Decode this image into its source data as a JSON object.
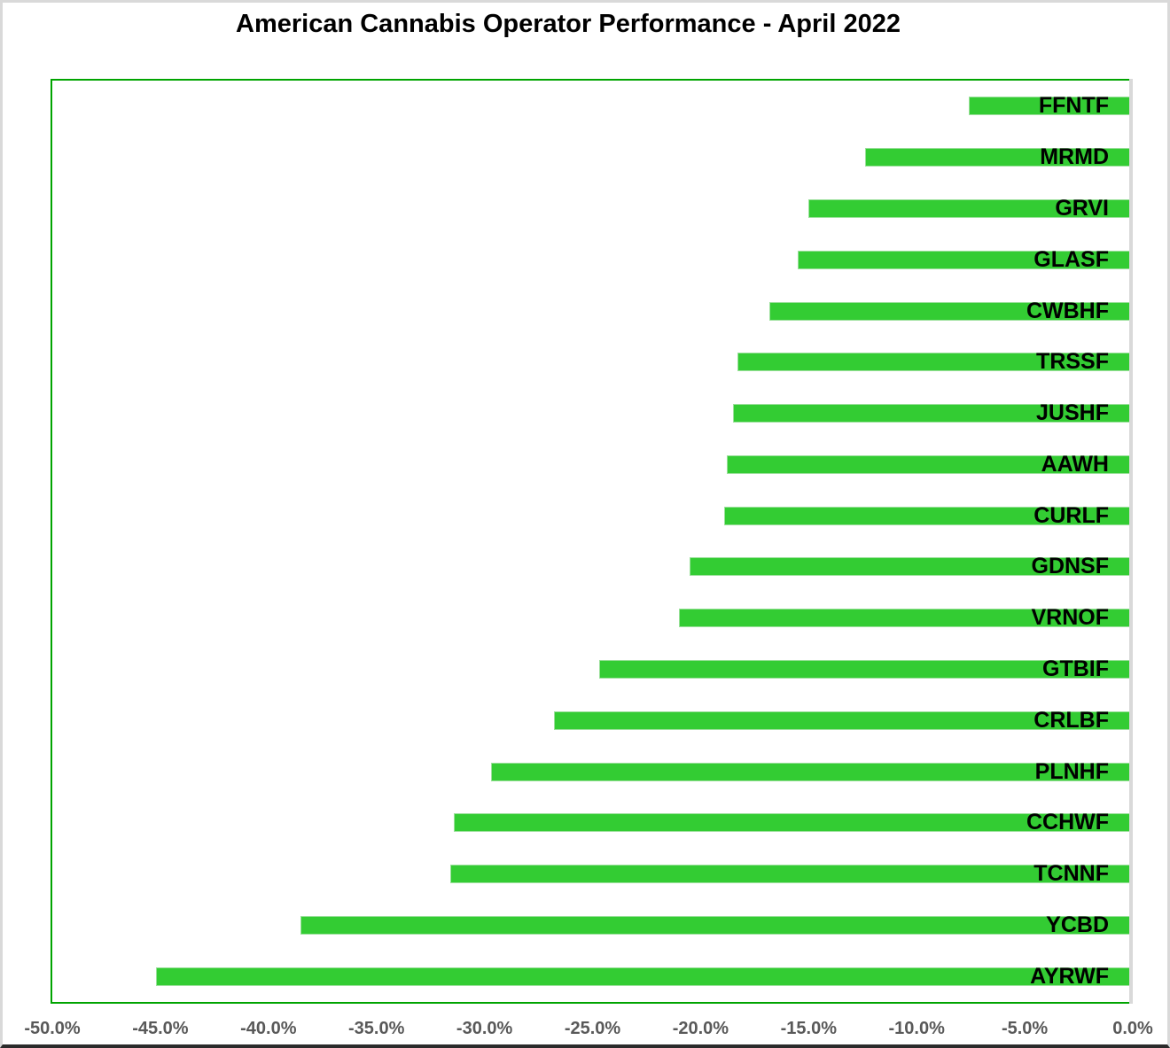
{
  "chart_data": {
    "type": "bar",
    "orientation": "horizontal",
    "title": "American Cannabis Operator Performance - April 2022",
    "categories": [
      "FFNTF",
      "MRMD",
      "GRVI",
      "GLASF",
      "CWBHF",
      "TRSSF",
      "JUSHF",
      "AAWH",
      "CURLF",
      "GDNSF",
      "VRNOF",
      "GTBIF",
      "CRLBF",
      "PLNHF",
      "CCHWF",
      "TCNNF",
      "YCBD",
      "AYRWF"
    ],
    "values": [
      -7.6,
      -12.4,
      -15.0,
      -15.5,
      -16.8,
      -18.3,
      -18.5,
      -18.8,
      -18.9,
      -20.5,
      -21.0,
      -24.7,
      -26.8,
      -29.7,
      -31.4,
      -31.6,
      -38.5,
      -45.2
    ],
    "value_unit": "percent",
    "xlabel": "",
    "ylabel": "",
    "xlim": [
      -50,
      0
    ],
    "x_tick_labels": [
      "-50.0%",
      "-45.0%",
      "-40.0%",
      "-35.0%",
      "-30.0%",
      "-25.0%",
      "-20.0%",
      "-15.0%",
      "-10.0%",
      "-5.0%",
      "0.0%"
    ],
    "grid": false,
    "legend": false,
    "data_label_position": "inside-end",
    "colors": {
      "bar_fill": "#33cc33",
      "bar_border": "#9be09b",
      "plot_border": "#00a400",
      "zero_axis_line": "#d9d9d9",
      "tick_label": "#595959",
      "title_text": "#000000",
      "bar_label_text": "#000000"
    }
  }
}
